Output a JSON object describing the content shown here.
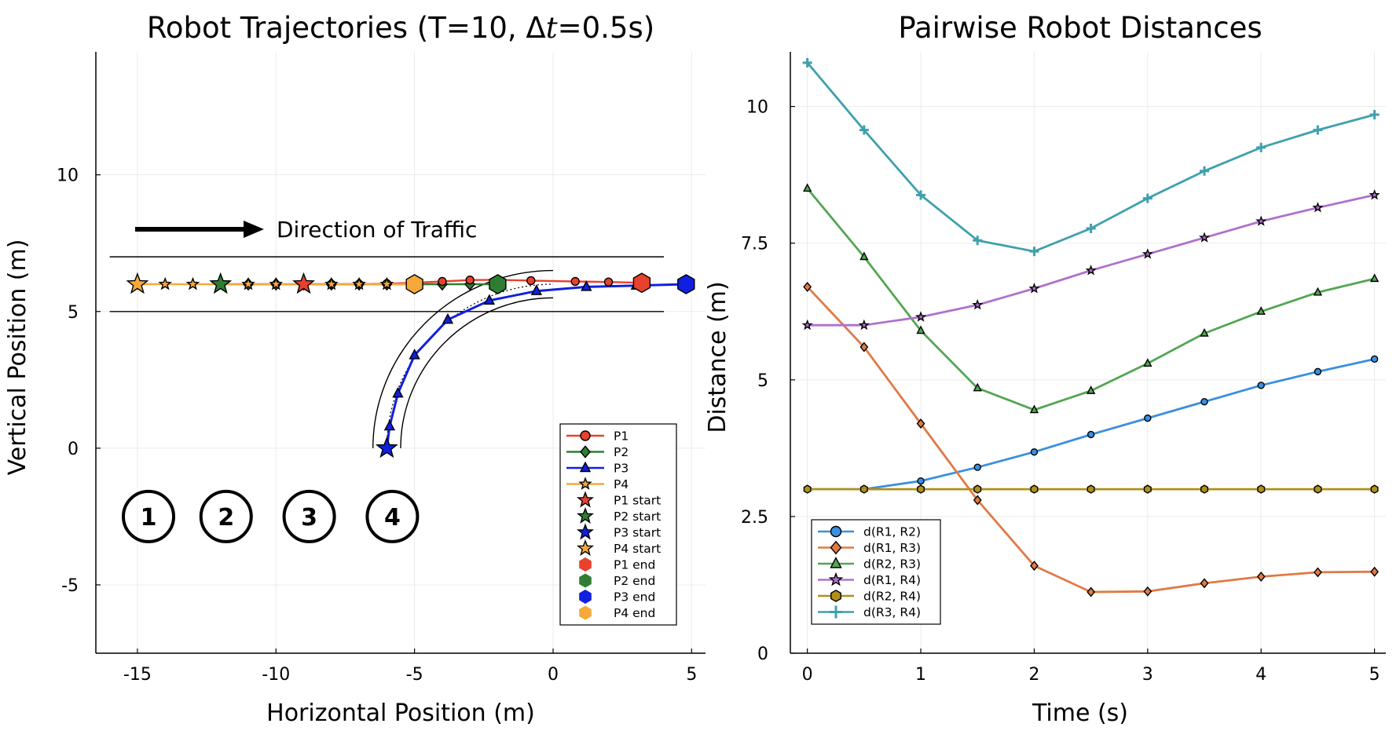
{
  "chart_data": [
    {
      "type": "line",
      "title": "Robot Trajectories (T=10, Δt=0.5s)",
      "title_prefix": "Robot Trajectories (T=10, ",
      "title_delta": "Δ",
      "title_t": "t",
      "title_suffix": "=0.5s)",
      "xlabel": "Horizontal Position (m)",
      "ylabel": "Vertical Position (m)",
      "xlim": [
        -16.5,
        5.5
      ],
      "ylim": [
        -7.5,
        14.5
      ],
      "xticks": [
        -15,
        -10,
        -5,
        0,
        5
      ],
      "yticks": [
        -5,
        0,
        5,
        10
      ],
      "xtick_labels": [
        "-15",
        "-10",
        "-5",
        "0",
        "5"
      ],
      "ytick_labels": [
        "-5",
        "0",
        "5",
        "10"
      ],
      "annotation": "Direction of Traffic",
      "lane_lines": [
        [
          -16,
          4,
          7
        ],
        [
          -16,
          4,
          5
        ]
      ],
      "circle_labels": [
        {
          "x": -14.6,
          "y": -2.5,
          "label": "1"
        },
        {
          "x": -11.8,
          "y": -2.5,
          "label": "2"
        },
        {
          "x": -8.8,
          "y": -2.5,
          "label": "3"
        },
        {
          "x": -5.8,
          "y": -2.5,
          "label": "4"
        }
      ],
      "series": [
        {
          "name": "P1",
          "color": "#e8412e",
          "marker": "circle",
          "x": [
            -9,
            -8,
            -7,
            -6,
            -5,
            -4,
            -3,
            -2,
            -0.8,
            0.8,
            2,
            3.2
          ],
          "y": [
            6,
            6,
            6,
            6.02,
            6.05,
            6.1,
            6.15,
            6.16,
            6.13,
            6.1,
            6.08,
            6.05
          ]
        },
        {
          "name": "P2",
          "color": "#2f7d32",
          "marker": "diamond",
          "x": [
            -12,
            -11,
            -10,
            -9,
            -8,
            -7,
            -6,
            -5,
            -4,
            -3,
            -2
          ],
          "y": [
            6,
            6,
            6,
            6,
            6,
            6,
            6,
            6,
            6,
            6,
            6
          ]
        },
        {
          "name": "P3",
          "color": "#1020e0",
          "marker": "triangle",
          "x": [
            -6,
            -5.9,
            -5.6,
            -5,
            -3.8,
            -2.3,
            -0.6,
            1.2,
            3,
            4.8
          ],
          "y": [
            0,
            0.8,
            2,
            3.4,
            4.7,
            5.4,
            5.75,
            5.9,
            5.95,
            6
          ]
        },
        {
          "name": "P4",
          "color": "#f4a93a",
          "marker": "star",
          "x": [
            -15,
            -14,
            -13,
            -12,
            -11,
            -10,
            -9,
            -8,
            -7,
            -6,
            -5
          ],
          "y": [
            6,
            6,
            6,
            6,
            6,
            6,
            6,
            6,
            6,
            6,
            6
          ]
        }
      ],
      "legend": {
        "position": "bottom-right",
        "entries": [
          "P1",
          "P2",
          "P3",
          "P4",
          "P1 start",
          "P2 start",
          "P3 start",
          "P4 start",
          "P1 end",
          "P2 end",
          "P3 end",
          "P4 end"
        ]
      }
    },
    {
      "type": "line",
      "title": "Pairwise Robot Distances",
      "xlabel": "Time (s)",
      "ylabel": "Distance (m)",
      "xlim": [
        -0.15,
        5.1
      ],
      "ylim": [
        0,
        11
      ],
      "xticks": [
        0,
        1,
        2,
        3,
        4,
        5
      ],
      "yticks": [
        0,
        2.5,
        5,
        7.5,
        10
      ],
      "xtick_labels": [
        "0",
        "1",
        "2",
        "3",
        "4",
        "5"
      ],
      "ytick_labels": [
        "0",
        "2.5",
        "5",
        "7.5",
        "10"
      ],
      "x": [
        0,
        0.5,
        1,
        1.5,
        2,
        2.5,
        3,
        3.5,
        4,
        4.5,
        5
      ],
      "series": [
        {
          "name": "d(R1, R2)",
          "color": "#3a8fe0",
          "marker": "circle",
          "values": [
            3.0,
            3.0,
            3.15,
            3.4,
            3.68,
            4.0,
            4.3,
            4.6,
            4.9,
            5.15,
            5.38
          ]
        },
        {
          "name": "d(R1, R3)",
          "color": "#e07a45",
          "marker": "diamond",
          "values": [
            6.7,
            5.6,
            4.2,
            2.8,
            1.6,
            1.12,
            1.13,
            1.28,
            1.4,
            1.48,
            1.49
          ]
        },
        {
          "name": "d(R2, R3)",
          "color": "#53a653",
          "marker": "triangle",
          "values": [
            8.5,
            7.25,
            5.9,
            4.85,
            4.45,
            4.8,
            5.3,
            5.85,
            6.25,
            6.6,
            6.85
          ]
        },
        {
          "name": "d(R1, R4)",
          "color": "#b071cc",
          "marker": "star",
          "values": [
            6.0,
            6.0,
            6.15,
            6.37,
            6.67,
            7.0,
            7.3,
            7.6,
            7.9,
            8.15,
            8.38
          ]
        },
        {
          "name": "d(R2, R4)",
          "color": "#b09018",
          "marker": "hexagon",
          "values": [
            3.0,
            3.0,
            3.0,
            3.0,
            3.0,
            3.0,
            3.0,
            3.0,
            3.0,
            3.0,
            3.0
          ]
        },
        {
          "name": "d(R3, R4)",
          "color": "#3fa0ad",
          "marker": "cross",
          "values": [
            10.8,
            9.57,
            8.38,
            7.55,
            7.35,
            7.77,
            8.32,
            8.82,
            9.25,
            9.57,
            9.85
          ]
        }
      ],
      "legend": {
        "position": "bottom-left"
      }
    }
  ]
}
